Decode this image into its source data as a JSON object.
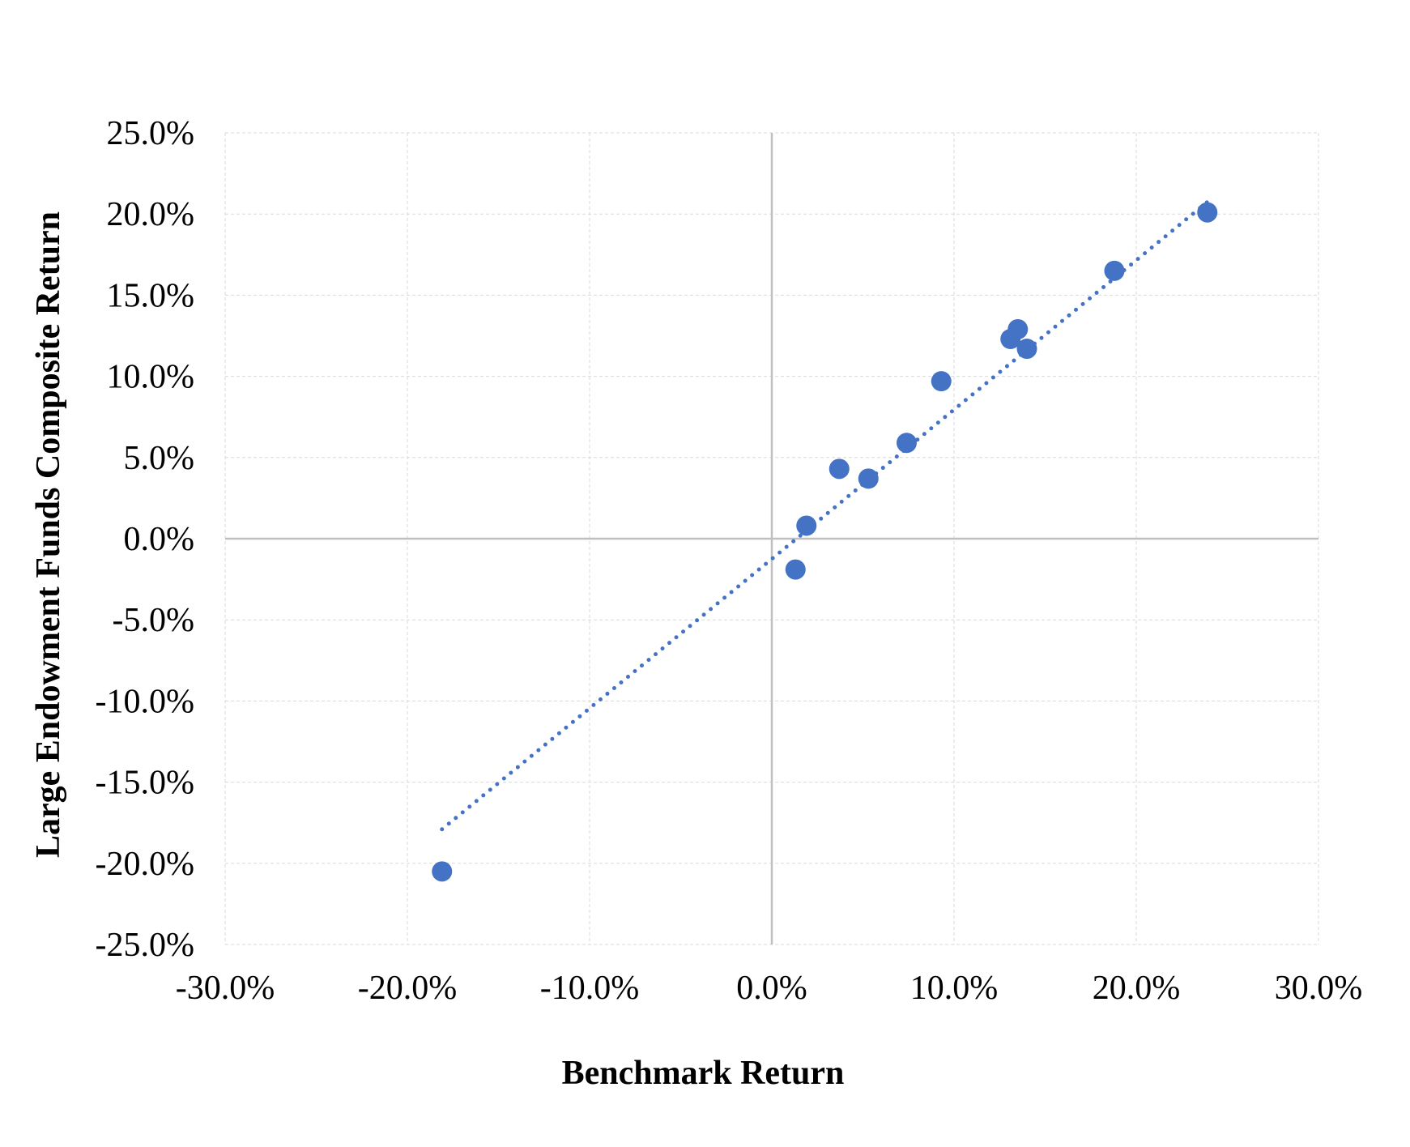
{
  "chart_data": {
    "type": "scatter",
    "title": "",
    "xlabel": "Benchmark Return",
    "ylabel": "Large Endowment Funds Composite Return",
    "xlim": [
      -0.3,
      0.3
    ],
    "ylim": [
      -0.25,
      0.25
    ],
    "x_ticks": [
      -0.3,
      -0.2,
      -0.1,
      0.0,
      0.1,
      0.2,
      0.3
    ],
    "x_tick_labels": [
      "-30.0%",
      "-20.0%",
      "-10.0%",
      "0.0%",
      "10.0%",
      "20.0%",
      "30.0%"
    ],
    "y_ticks": [
      0.25,
      0.2,
      0.15,
      0.1,
      0.05,
      0.0,
      -0.05,
      -0.1,
      -0.15,
      -0.2,
      -0.25
    ],
    "y_tick_labels": [
      "25.0%",
      "20.0%",
      "15.0%",
      "10.0%",
      "5.0%",
      "0.0%",
      "-5.0%",
      "-10.0%",
      "-15.0%",
      "-20.0%",
      "-25.0%"
    ],
    "grid": true,
    "grid_style": "dashed",
    "legend": "none",
    "series": [
      {
        "marker_color": "#4472C4",
        "points": [
          {
            "x": -0.181,
            "y": -0.205
          },
          {
            "x": 0.013,
            "y": -0.019
          },
          {
            "x": 0.019,
            "y": 0.008
          },
          {
            "x": 0.037,
            "y": 0.043
          },
          {
            "x": 0.053,
            "y": 0.037
          },
          {
            "x": 0.074,
            "y": 0.059
          },
          {
            "x": 0.093,
            "y": 0.097
          },
          {
            "x": 0.131,
            "y": 0.123
          },
          {
            "x": 0.135,
            "y": 0.129
          },
          {
            "x": 0.14,
            "y": 0.117
          },
          {
            "x": 0.188,
            "y": 0.165
          },
          {
            "x": 0.239,
            "y": 0.201
          }
        ]
      }
    ],
    "trendline": {
      "type": "linear",
      "style": "dotted",
      "color": "#4472C4",
      "x_range": [
        -0.181,
        0.239
      ],
      "slope": 0.92,
      "intercept": -0.0125
    },
    "zero_lines": true
  }
}
